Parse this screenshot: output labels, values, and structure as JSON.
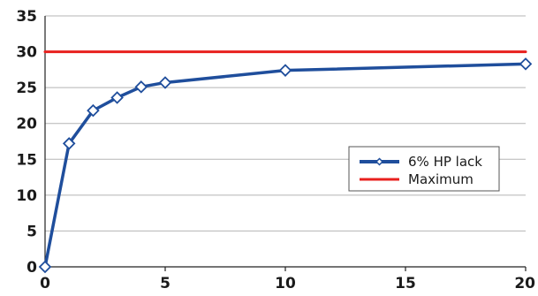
{
  "chart_data": {
    "type": "line",
    "xlim": [
      0,
      20
    ],
    "ylim": [
      0,
      35
    ],
    "x_ticks": [
      "0",
      "5",
      "10",
      "15",
      "20"
    ],
    "y_ticks": [
      "0",
      "5",
      "10",
      "15",
      "20",
      "25",
      "30",
      "35"
    ],
    "grid": "horizontal",
    "legend": "right",
    "series": [
      {
        "name": "6% HP lack",
        "color": "#1f4e9c",
        "marker": "diamond",
        "x": [
          0,
          1,
          2,
          3,
          4,
          5,
          10,
          20
        ],
        "y": [
          0,
          17.2,
          21.8,
          23.6,
          25.1,
          25.7,
          27.4,
          28.3
        ]
      },
      {
        "name": "Maximum",
        "color": "#e8201e",
        "marker": "none",
        "x": [
          0,
          20
        ],
        "y": [
          30,
          30
        ]
      }
    ]
  }
}
